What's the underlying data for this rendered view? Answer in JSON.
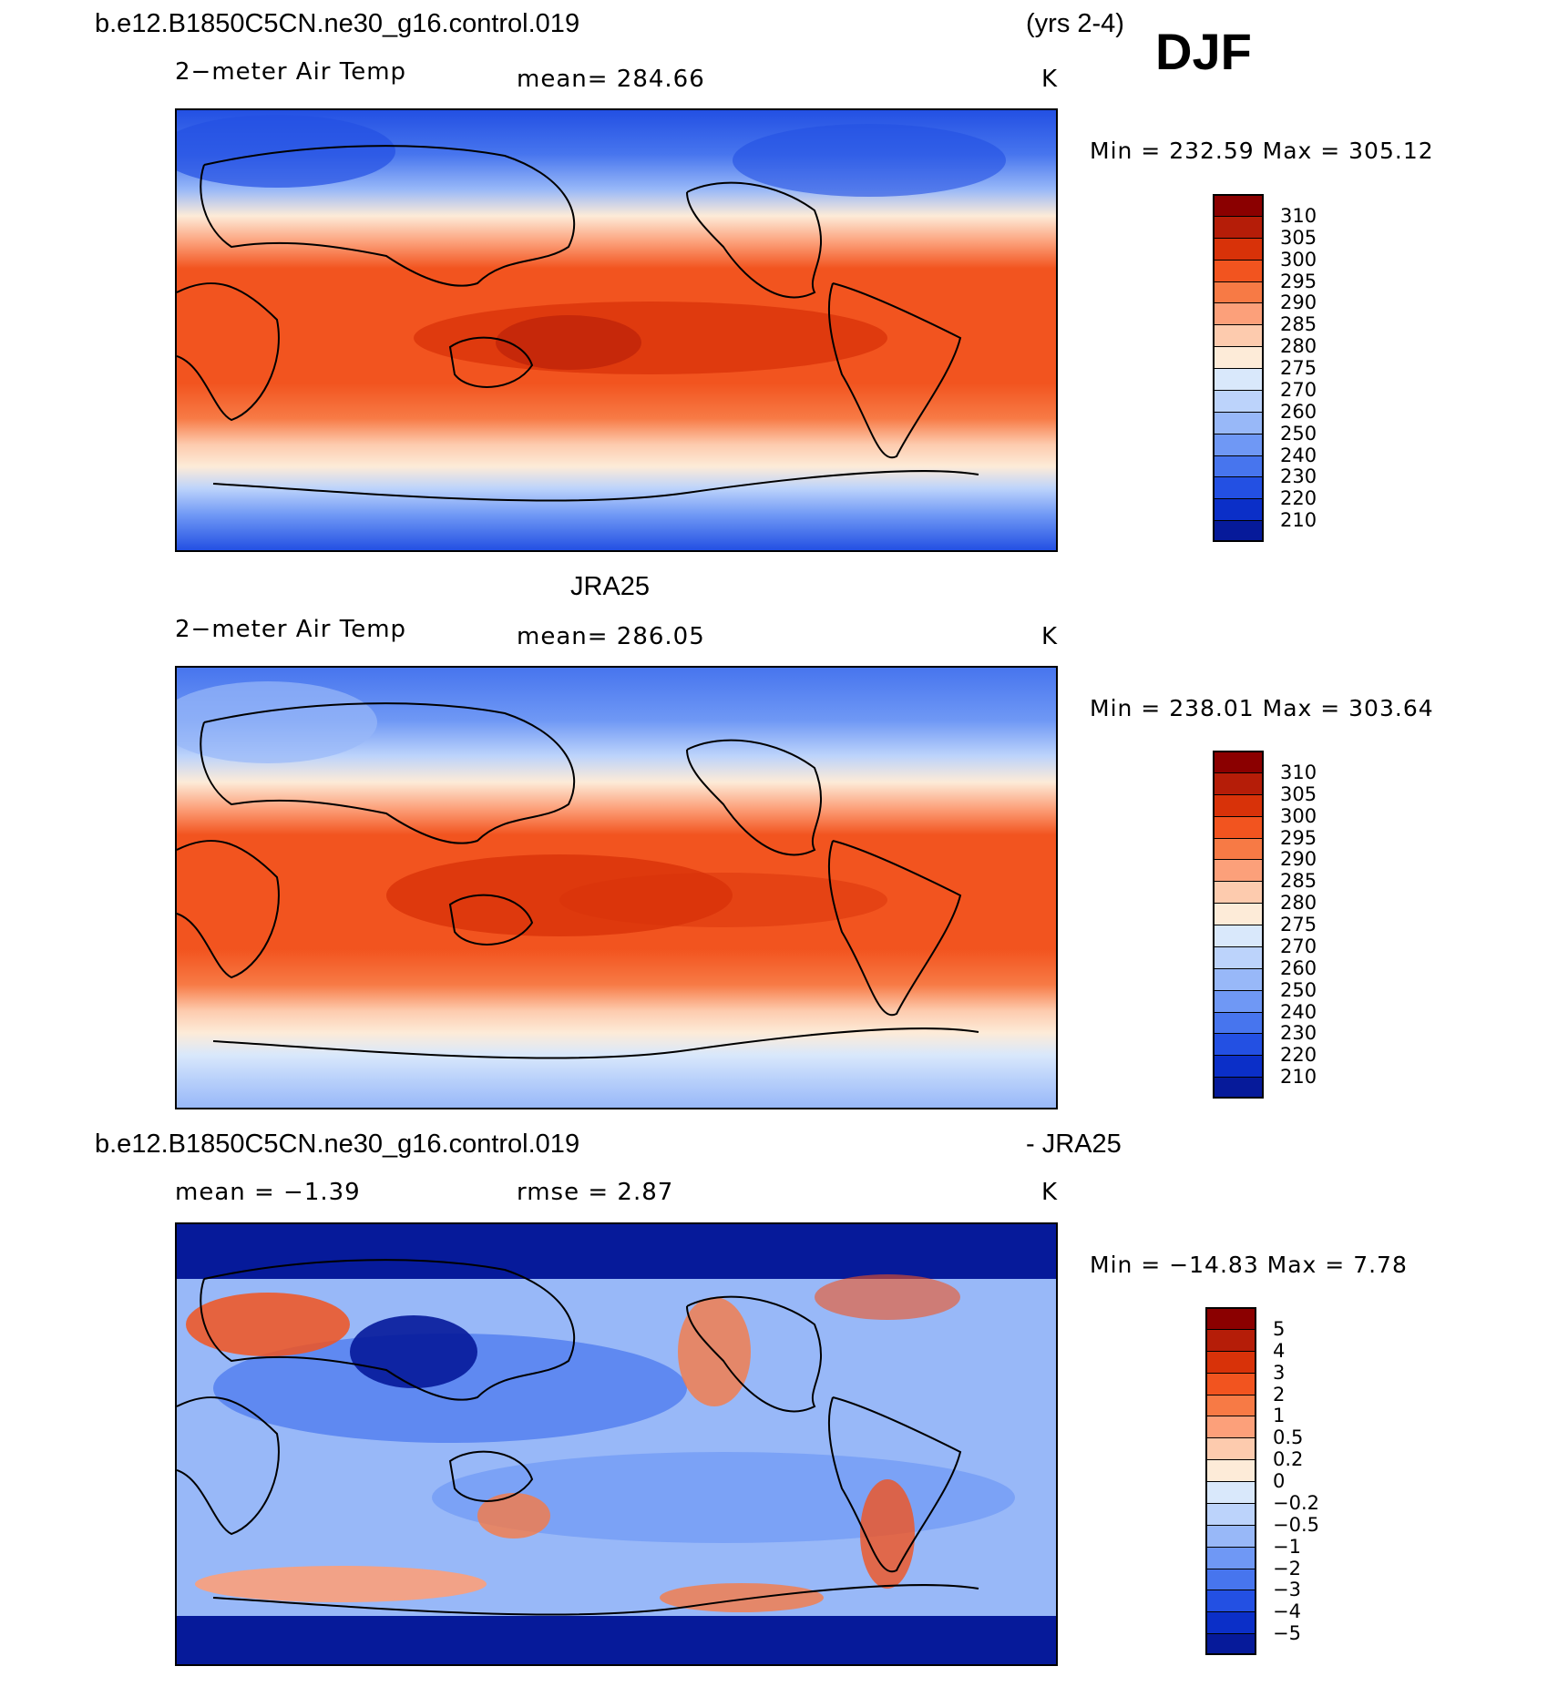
{
  "header": {
    "case_name": "b.e12.B1850C5CN.ne30_g16.control.019",
    "years": "(yrs 2-4)",
    "season": "DJF"
  },
  "panels": [
    {
      "title": "",
      "variable": "2−meter Air Temp",
      "center": "mean=  284.66",
      "units": "K",
      "minmax": "Min  =  232.59  Max  =  305.12",
      "colorbar": {
        "labels": [
          "310",
          "305",
          "300",
          "295",
          "290",
          "285",
          "280",
          "275",
          "270",
          "260",
          "250",
          "240",
          "230",
          "220",
          "210"
        ],
        "colors": [
          "#8b0000",
          "#b51d08",
          "#d83209",
          "#f2541f",
          "#f77a45",
          "#fca07a",
          "#fdcbae",
          "#fdebd8",
          "#d9e8fb",
          "#bcd3fb",
          "#98b8f8",
          "#6f98f5",
          "#4775ee",
          "#2350e3",
          "#0b2fc8",
          "#061a9a"
        ]
      }
    },
    {
      "title": "JRA25",
      "variable": "2−meter Air Temp",
      "center": "mean=  286.05",
      "units": "K",
      "minmax": "Min  =  238.01  Max  =  303.64",
      "colorbar": {
        "labels": [
          "310",
          "305",
          "300",
          "295",
          "290",
          "285",
          "280",
          "275",
          "270",
          "260",
          "250",
          "240",
          "230",
          "220",
          "210"
        ],
        "colors": [
          "#8b0000",
          "#b51d08",
          "#d83209",
          "#f2541f",
          "#f77a45",
          "#fca07a",
          "#fdcbae",
          "#fdebd8",
          "#d9e8fb",
          "#bcd3fb",
          "#98b8f8",
          "#6f98f5",
          "#4775ee",
          "#2350e3",
          "#0b2fc8",
          "#061a9a"
        ]
      }
    },
    {
      "title_left": "b.e12.B1850C5CN.ne30_g16.control.019",
      "title_right": "- JRA25",
      "variable": "mean =   −1.39",
      "center": "rmse =     2.87",
      "units": "K",
      "minmax": "Min  =  −14.83  Max  =     7.78",
      "colorbar": {
        "labels": [
          "5",
          "4",
          "3",
          "2",
          "1",
          "0.5",
          "0.2",
          "0",
          "−0.2",
          "−0.5",
          "−1",
          "−2",
          "−3",
          "−4",
          "−5"
        ],
        "colors": [
          "#8b0000",
          "#b51d08",
          "#d83209",
          "#f2541f",
          "#f77a45",
          "#fca07a",
          "#fdcbae",
          "#fdebd8",
          "#d9e8fb",
          "#bcd3fb",
          "#98b8f8",
          "#6f98f5",
          "#4775ee",
          "#2350e3",
          "#0b2fc8",
          "#061a9a"
        ]
      }
    }
  ]
}
